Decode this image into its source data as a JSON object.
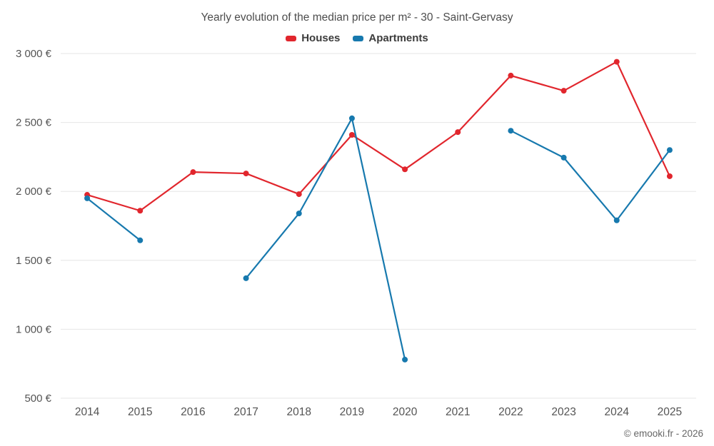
{
  "chart_data": {
    "type": "line",
    "title": "Yearly evolution of the median price per m² - 30 - Saint-Gervasy",
    "xlabel": "",
    "ylabel": "",
    "x": [
      "2014",
      "2015",
      "2016",
      "2017",
      "2018",
      "2019",
      "2020",
      "2021",
      "2022",
      "2023",
      "2024",
      "2025"
    ],
    "series": [
      {
        "name": "Houses",
        "color": "#e1262d",
        "values": [
          1975,
          1860,
          2140,
          2130,
          1980,
          2410,
          2160,
          2430,
          2840,
          2730,
          2940,
          2110
        ]
      },
      {
        "name": "Apartments",
        "color": "#1779ae",
        "values": [
          1950,
          1645,
          null,
          1370,
          1840,
          2530,
          780,
          null,
          2440,
          2245,
          1790,
          2300
        ]
      }
    ],
    "ylim": [
      500,
      3000
    ],
    "yticks": {
      "values": [
        500,
        1000,
        1500,
        2000,
        2500,
        3000
      ],
      "labels": [
        "500 €",
        "1 000 €",
        "1 500 €",
        "2 000 €",
        "2 500 €",
        "3 000 €"
      ]
    },
    "grid": "horizontal",
    "legend_position": "top",
    "colors": {
      "grid": "#e6e6e6",
      "axis_text": "#545454"
    }
  },
  "footer": {
    "copyright": "© emooki.fr - 2026"
  }
}
